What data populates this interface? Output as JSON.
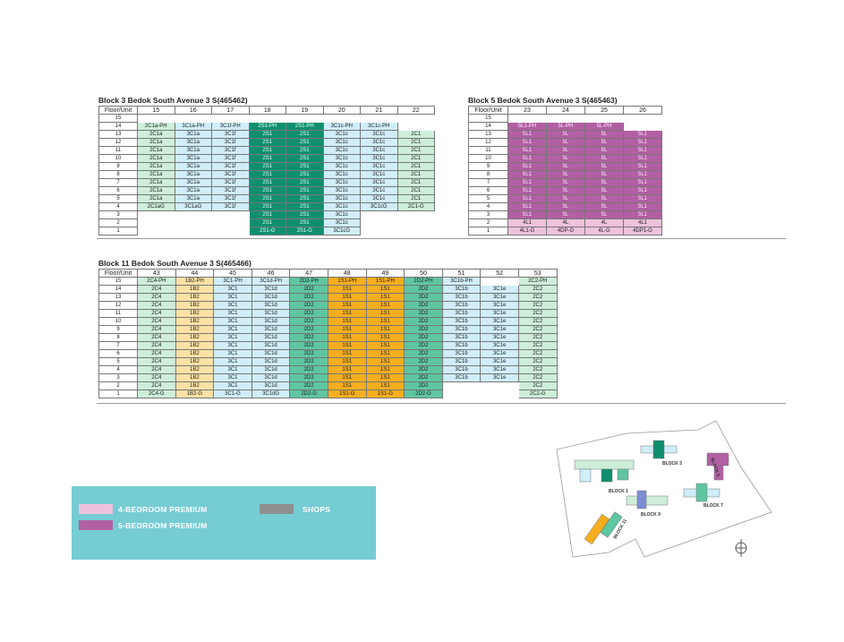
{
  "blocks": {
    "b3": {
      "title": "Block 3 Bedok South Avenue 3 S(465462)",
      "floor_header": "Floor/Unit",
      "units": [
        "15",
        "16",
        "17",
        "18",
        "19",
        "20",
        "21",
        "22"
      ],
      "rows": [
        {
          "floor": "15",
          "cells": [
            "",
            "",
            "",
            "",
            "",
            "",
            "",
            ""
          ]
        },
        {
          "floor": "14",
          "cells": [
            "2C1a-PH",
            "3C1a-PH",
            "3C1f-PH",
            "2S1-PH",
            "2S1-PH",
            "3C1c-PH",
            "3C1c-PH",
            ""
          ]
        },
        {
          "floor": "13",
          "cells": [
            "2C1a",
            "3C1a",
            "3C1f",
            "2S1",
            "2S1",
            "3C1c",
            "3C1c",
            "2C1"
          ]
        },
        {
          "floor": "12",
          "cells": [
            "2C1a",
            "3C1a",
            "3C1f",
            "2S1",
            "2S1",
            "3C1c",
            "3C1c",
            "2C1"
          ]
        },
        {
          "floor": "11",
          "cells": [
            "2C1a",
            "3C1a",
            "3C1f",
            "2S1",
            "2S1",
            "3C1c",
            "3C1c",
            "2C1"
          ]
        },
        {
          "floor": "10",
          "cells": [
            "2C1a",
            "3C1a",
            "3C1f",
            "2S1",
            "2S1",
            "3C1c",
            "3C1c",
            "2C1"
          ]
        },
        {
          "floor": "9",
          "cells": [
            "2C1a",
            "3C1a",
            "3C1f",
            "2S1",
            "2S1",
            "3C1c",
            "3C1c",
            "2C1"
          ]
        },
        {
          "floor": "8",
          "cells": [
            "2C1a",
            "3C1a",
            "3C1f",
            "2S1",
            "2S1",
            "3C1c",
            "3C1c",
            "2C1"
          ]
        },
        {
          "floor": "7",
          "cells": [
            "2C1a",
            "3C1a",
            "3C1f",
            "2S1",
            "2S1",
            "3C1c",
            "3C1c",
            "2C1"
          ]
        },
        {
          "floor": "6",
          "cells": [
            "2C1a",
            "3C1a",
            "3C1f",
            "2S1",
            "2S1",
            "3C1c",
            "3C1c",
            "2C1"
          ]
        },
        {
          "floor": "5",
          "cells": [
            "2C1a",
            "3C1a",
            "3C1f",
            "2S1",
            "2S1",
            "3C1c",
            "3C1c",
            "2C1"
          ]
        },
        {
          "floor": "4",
          "cells": [
            "2C1aG",
            "3C1aG",
            "3C1f",
            "2S1",
            "2S1",
            "3C1c",
            "3C1cG",
            "2C1-G"
          ]
        },
        {
          "floor": "3",
          "cells": [
            "",
            "",
            "",
            "2S1",
            "2S1",
            "3C1c",
            "",
            ""
          ]
        },
        {
          "floor": "2",
          "cells": [
            "",
            "",
            "",
            "2S1",
            "2S1",
            "3C1c",
            "",
            ""
          ]
        },
        {
          "floor": "1",
          "cells": [
            "",
            "",
            "",
            "2S1-G",
            "2S1-G",
            "3C1cG",
            "",
            ""
          ]
        }
      ]
    },
    "b5": {
      "title": "Block 5 Bedok South Avenue 3 S(465463)",
      "floor_header": "Floor/Unit",
      "units": [
        "23",
        "24",
        "25",
        "26"
      ],
      "rows": [
        {
          "floor": "15",
          "cells": [
            "",
            "",
            "",
            ""
          ]
        },
        {
          "floor": "14",
          "cells": [
            "5L1-PH",
            "5L-PH",
            "5L-PH",
            ""
          ]
        },
        {
          "floor": "13",
          "cells": [
            "5L1",
            "5L",
            "5L",
            "5L1"
          ]
        },
        {
          "floor": "12",
          "cells": [
            "5L1",
            "5L",
            "5L",
            "5L1"
          ]
        },
        {
          "floor": "11",
          "cells": [
            "5L1",
            "5L",
            "5L",
            "5L1"
          ]
        },
        {
          "floor": "10",
          "cells": [
            "5L1",
            "5L",
            "5L",
            "5L1"
          ]
        },
        {
          "floor": "9",
          "cells": [
            "5L1",
            "5L",
            "5L",
            "5L1"
          ]
        },
        {
          "floor": "8",
          "cells": [
            "5L1",
            "5L",
            "5L",
            "5L1"
          ]
        },
        {
          "floor": "7",
          "cells": [
            "5L1",
            "5L",
            "5L",
            "5L1"
          ]
        },
        {
          "floor": "6",
          "cells": [
            "5L1",
            "5L",
            "5L",
            "5L1"
          ]
        },
        {
          "floor": "5",
          "cells": [
            "5L1",
            "5L",
            "5L",
            "5L1"
          ]
        },
        {
          "floor": "4",
          "cells": [
            "5L1",
            "5L",
            "5L",
            "5L1"
          ]
        },
        {
          "floor": "3",
          "cells": [
            "5L1",
            "5L",
            "5L",
            "5L1"
          ]
        },
        {
          "floor": "2",
          "cells": [
            "4L1",
            "4L",
            "4L",
            "4L1"
          ]
        },
        {
          "floor": "1",
          "cells": [
            "4L1-G",
            "4DP-G",
            "4L-G",
            "4DP1-G"
          ]
        }
      ]
    },
    "b11": {
      "title": "Block 11 Bedok South Avenue 3 S(465466)",
      "floor_header": "Floor/Unit",
      "units": [
        "43",
        "44",
        "45",
        "46",
        "47",
        "48",
        "49",
        "50",
        "51",
        "52",
        "53"
      ],
      "rows": [
        {
          "floor": "15",
          "cells": [
            "2C4-PH",
            "1B2-PH",
            "3C1-PH",
            "3C1d-PH",
            "2D2-PH",
            "1S1-PH",
            "1S1-PH",
            "2D2-PH",
            "3C1b-PH",
            "",
            "2C2-PH"
          ]
        },
        {
          "floor": "14",
          "cells": [
            "2C4",
            "1B2",
            "3C1",
            "3C1d",
            "2D2",
            "1S1",
            "1S1",
            "2D2",
            "3C1b",
            "3C1e",
            "2C2"
          ]
        },
        {
          "floor": "13",
          "cells": [
            "2C4",
            "1B2",
            "3C1",
            "3C1d",
            "2D2",
            "1S1",
            "1S1",
            "2D2",
            "3C1b",
            "3C1e",
            "2C2"
          ]
        },
        {
          "floor": "12",
          "cells": [
            "2C4",
            "1B2",
            "3C1",
            "3C1d",
            "2D2",
            "1S1",
            "1S1",
            "2D2",
            "3C1b",
            "3C1e",
            "2C2"
          ]
        },
        {
          "floor": "11",
          "cells": [
            "2C4",
            "1B2",
            "3C1",
            "3C1d",
            "2D2",
            "1S1",
            "1S1",
            "2D2",
            "3C1b",
            "3C1e",
            "2C2"
          ]
        },
        {
          "floor": "10",
          "cells": [
            "2C4",
            "1B2",
            "3C1",
            "3C1d",
            "2D2",
            "1S1",
            "1S1",
            "2D2",
            "3C1b",
            "3C1e",
            "2C2"
          ]
        },
        {
          "floor": "9",
          "cells": [
            "2C4",
            "1B2",
            "3C1",
            "3C1d",
            "2D2",
            "1S1",
            "1S1",
            "2D2",
            "3C1b",
            "3C1e",
            "2C2"
          ]
        },
        {
          "floor": "8",
          "cells": [
            "2C4",
            "1B2",
            "3C1",
            "3C1d",
            "2D2",
            "1S1",
            "1S1",
            "2D2",
            "3C1b",
            "3C1e",
            "2C2"
          ]
        },
        {
          "floor": "7",
          "cells": [
            "2C4",
            "1B2",
            "3C1",
            "3C1d",
            "2D2",
            "1S1",
            "1S1",
            "2D2",
            "3C1b",
            "3C1e",
            "2C2"
          ]
        },
        {
          "floor": "6",
          "cells": [
            "2C4",
            "1B2",
            "3C1",
            "3C1d",
            "2D2",
            "1S1",
            "1S1",
            "2D2",
            "3C1b",
            "3C1e",
            "2C2"
          ]
        },
        {
          "floor": "5",
          "cells": [
            "2C4",
            "1B2",
            "3C1",
            "3C1d",
            "2D2",
            "1S1",
            "1S1",
            "2D2",
            "3C1b",
            "3C1e",
            "2C2"
          ]
        },
        {
          "floor": "4",
          "cells": [
            "2C4",
            "1B2",
            "3C1",
            "3C1d",
            "2D2",
            "1S1",
            "1S1",
            "2D2",
            "3C1b",
            "3C1e",
            "2C2"
          ]
        },
        {
          "floor": "3",
          "cells": [
            "2C4",
            "1B2",
            "3C1",
            "3C1d",
            "2D2",
            "1S1",
            "1S1",
            "2D2",
            "3C1b",
            "3C1e",
            "2C2"
          ]
        },
        {
          "floor": "2",
          "cells": [
            "2C4",
            "1B2",
            "3C1",
            "3C1d",
            "2D2",
            "1S1",
            "1S1",
            "2D2",
            "",
            "",
            "2C2"
          ]
        },
        {
          "floor": "1",
          "cells": [
            "2C4-G",
            "1B2-G",
            "3C1-G",
            "3C1dG",
            "2D2-G",
            "1S1-G",
            "1S1-G",
            "2D2-G",
            "",
            "",
            "2C2-G"
          ]
        }
      ]
    }
  },
  "legend": {
    "items": [
      {
        "label": "4-BEDROOM PREMIUM",
        "color": "#eec2dc"
      },
      {
        "label": "5-BEDROOM PREMIUM",
        "color": "#b25fa4"
      },
      {
        "label": "SHOPS",
        "color": "#8f8f8f"
      }
    ]
  },
  "site_plan": {
    "labels": [
      "BLOCK 1",
      "BLOCK 3",
      "BLOCK 5",
      "BLOCK 7",
      "BLOCK 9",
      "BLOCK 11"
    ]
  }
}
